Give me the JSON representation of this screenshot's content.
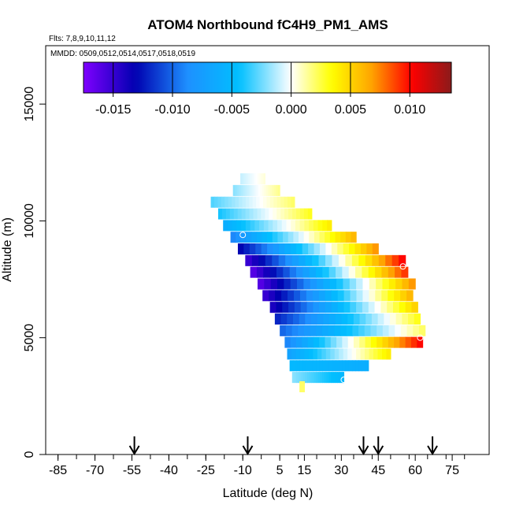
{
  "chart_data": {
    "type": "heatmap",
    "title": "ATOM4 Northbound fC4H9_PM1_AMS",
    "subtitle_flights": "Flts: 7,8,9,10,11,12",
    "subtitle_dates": "MMDD: 0509,0512,0514,0517,0518,0519",
    "xlabel": "Latitude (deg N)",
    "ylabel": "Altitude (m)",
    "xlim": [
      -90,
      90
    ],
    "ylim": [
      0,
      17500
    ],
    "x_ticks": [
      -85,
      -70,
      -55,
      -40,
      -25,
      -10,
      5,
      15,
      30,
      45,
      60,
      75
    ],
    "x_tick_labels": [
      "-85",
      "-70",
      "-55",
      "-40",
      "-25",
      "-10",
      "5",
      "15",
      "30",
      "45",
      "60",
      "75"
    ],
    "y_ticks": [
      0,
      5000,
      10000,
      15000
    ],
    "y_tick_labels": [
      "0",
      "5000",
      "10000",
      "15000"
    ],
    "colorbar": {
      "range": [
        -0.0175,
        0.0135
      ],
      "ticks": [
        -0.015,
        -0.01,
        -0.005,
        0.0,
        0.005,
        0.01
      ],
      "tick_labels": [
        "-0.015",
        "-0.010",
        "-0.005",
        "0.000",
        "0.005",
        "0.010"
      ],
      "colors": [
        "#7f00ff",
        "#0000b0",
        "#1e90ff",
        "#00bfff",
        "#ffffff",
        "#ffff00",
        "#ffa500",
        "#ff0000",
        "#8b1a1a"
      ]
    },
    "arrow_latitudes": [
      -54,
      -8,
      39,
      45,
      67
    ],
    "bands": [
      {
        "alt": 11800,
        "lat_start": -11,
        "lat_end": -1,
        "v_start": -0.001,
        "v_end": 0.0005
      },
      {
        "alt": 11300,
        "lat_start": -14,
        "lat_end": 5,
        "v_start": -0.002,
        "v_end": 0.0015
      },
      {
        "alt": 10800,
        "lat_start": -23,
        "lat_end": 11,
        "v_start": -0.003,
        "v_end": 0.002
      },
      {
        "alt": 10300,
        "lat_start": -20,
        "lat_end": 18,
        "v_start": -0.004,
        "v_end": 0.003
      },
      {
        "alt": 9800,
        "lat_start": -18,
        "lat_end": 26,
        "v_start": -0.006,
        "v_end": 0.004
      },
      {
        "alt": 9300,
        "lat_start": -15,
        "lat_end": 36,
        "v_start": -0.009,
        "v_end": 0.006
      },
      {
        "alt": 8800,
        "lat_start": -12,
        "lat_end": 45,
        "v_start": -0.013,
        "v_end": 0.007
      },
      {
        "alt": 8300,
        "lat_start": -9,
        "lat_end": 56,
        "v_start": -0.015,
        "v_end": 0.01
      },
      {
        "alt": 7800,
        "lat_start": -7,
        "lat_end": 57,
        "v_start": -0.016,
        "v_end": 0.009
      },
      {
        "alt": 7300,
        "lat_start": -4,
        "lat_end": 60,
        "v_start": -0.016,
        "v_end": 0.007
      },
      {
        "alt": 6800,
        "lat_start": -2,
        "lat_end": 59,
        "v_start": -0.015,
        "v_end": 0.006
      },
      {
        "alt": 6300,
        "lat_start": 1,
        "lat_end": 61,
        "v_start": -0.014,
        "v_end": 0.005
      },
      {
        "alt": 5800,
        "lat_start": 3,
        "lat_end": 62,
        "v_start": -0.012,
        "v_end": 0.003
      },
      {
        "alt": 5300,
        "lat_start": 5,
        "lat_end": 64,
        "v_start": -0.01,
        "v_end": 0.002
      },
      {
        "alt": 4800,
        "lat_start": 7,
        "lat_end": 63,
        "v_start": -0.009,
        "v_end": 0.01
      },
      {
        "alt": 4300,
        "lat_start": 8,
        "lat_end": 50,
        "v_start": -0.007,
        "v_end": 0.004
      },
      {
        "alt": 3800,
        "lat_start": 9,
        "lat_end": 41,
        "v_start": -0.005,
        "v_end": -0.006
      },
      {
        "alt": 3300,
        "lat_start": 10,
        "lat_end": 31,
        "v_start": -0.002,
        "v_end": -0.005
      },
      {
        "alt": 2900,
        "lat_start": 13,
        "lat_end": 15,
        "v_start": 0.002,
        "v_end": 0.002
      }
    ],
    "markers": [
      {
        "lat": -10,
        "alt": 9400
      },
      {
        "lat": 55,
        "alt": 8050
      },
      {
        "lat": 62,
        "alt": 5000
      },
      {
        "lat": 31,
        "alt": 3200
      }
    ]
  }
}
